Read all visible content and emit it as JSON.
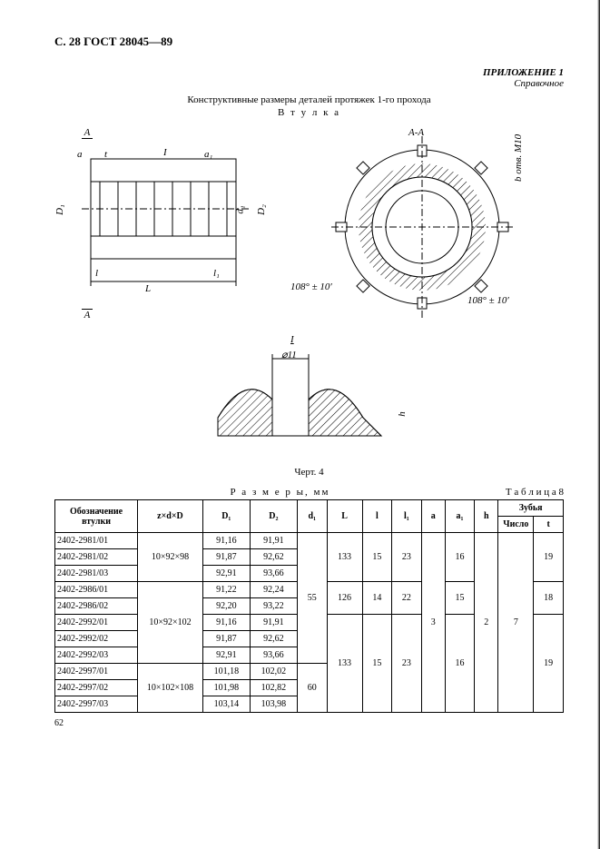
{
  "header": "С. 28 ГОСТ 28045—89",
  "appendix": {
    "line1": "ПРИЛОЖЕНИЕ 1",
    "line2": "Справочное"
  },
  "title": "Конструктивные размеры деталей протяжек 1-го прохода",
  "subtitle": "В т у л к а",
  "figure": {
    "section_label_top": "A",
    "section_label_right": "A-A",
    "angle_note": "108° ± 10′",
    "thread_note": "b отв. M10",
    "detail_label": "I",
    "detail_dim": "⌀11",
    "dims": {
      "D1": "D₁",
      "D2": "D₂",
      "d1": "d₁",
      "L": "L",
      "l": "l",
      "l1": "l₁",
      "a": "a",
      "a1": "a₁",
      "t": "t",
      "h": "h"
    },
    "caption": "Черт. 4"
  },
  "table": {
    "number": "Т а б л и ц а   8",
    "size_label": "Р а з м е р ы,   мм",
    "headers": {
      "c1": "Обозначение втулки",
      "c2": "z×d×D",
      "c3": "D₁",
      "c4": "D₂",
      "c5": "d₁",
      "c6": "L",
      "c7": "l",
      "c8": "l₁",
      "c9": "a",
      "c10": "a₁",
      "c11": "h",
      "teeth": "Зубья",
      "teeth_n": "Число",
      "teeth_t": "t"
    },
    "rows": [
      {
        "id": "2402-2981/01",
        "zdD": "10×92×98",
        "D1": "91,16",
        "D2": "91,91",
        "d1": "55",
        "L": "133",
        "l": "15",
        "l1": "23",
        "a": "3",
        "a1": "16",
        "h": "2",
        "zn": "7",
        "zt": "19"
      },
      {
        "id": "2402-2981/02",
        "zdD": "",
        "D1": "91,87",
        "D2": "92,62",
        "d1": "",
        "L": "",
        "l": "",
        "l1": "",
        "a": "",
        "a1": "",
        "h": "",
        "zn": "",
        "zt": ""
      },
      {
        "id": "2402-2981/03",
        "zdD": "",
        "D1": "92,91",
        "D2": "93,66",
        "d1": "",
        "L": "",
        "l": "",
        "l1": "",
        "a": "",
        "a1": "",
        "h": "",
        "zn": "",
        "zt": ""
      },
      {
        "id": "2402-2986/01",
        "zdD": "10×92×102",
        "D1": "91,22",
        "D2": "92,24",
        "d1": "",
        "L": "126",
        "l": "14",
        "l1": "22",
        "a": "",
        "a1": "15",
        "h": "",
        "zn": "",
        "zt": "18"
      },
      {
        "id": "2402-2986/02",
        "zdD": "",
        "D1": "92,20",
        "D2": "93,22",
        "d1": "",
        "L": "",
        "l": "",
        "l1": "",
        "a": "",
        "a1": "",
        "h": "",
        "zn": "",
        "zt": ""
      },
      {
        "id": "2402-2992/01",
        "zdD": "",
        "D1": "91,16",
        "D2": "91,91",
        "d1": "",
        "L": "133",
        "l": "15",
        "l1": "23",
        "a": "",
        "a1": "16",
        "h": "",
        "zn": "",
        "zt": "19"
      },
      {
        "id": "2402-2992/02",
        "zdD": "",
        "D1": "91,87",
        "D2": "92,62",
        "d1": "",
        "L": "",
        "l": "",
        "l1": "",
        "a": "",
        "a1": "",
        "h": "",
        "zn": "",
        "zt": ""
      },
      {
        "id": "2402-2992/03",
        "zdD": "",
        "D1": "92,91",
        "D2": "93,66",
        "d1": "",
        "L": "",
        "l": "",
        "l1": "",
        "a": "",
        "a1": "",
        "h": "",
        "zn": "",
        "zt": ""
      },
      {
        "id": "2402-2997/01",
        "zdD": "10×102×108",
        "D1": "101,18",
        "D2": "102,02",
        "d1": "60",
        "L": "",
        "l": "",
        "l1": "",
        "a": "",
        "a1": "",
        "h": "",
        "zn": "",
        "zt": ""
      },
      {
        "id": "2402-2997/02",
        "zdD": "",
        "D1": "101,98",
        "D2": "102,82",
        "d1": "",
        "L": "",
        "l": "",
        "l1": "",
        "a": "",
        "a1": "",
        "h": "",
        "zn": "",
        "zt": ""
      },
      {
        "id": "2402-2997/03",
        "zdD": "",
        "D1": "103,14",
        "D2": "103,98",
        "d1": "",
        "L": "",
        "l": "",
        "l1": "",
        "a": "",
        "a1": "",
        "h": "",
        "zn": "",
        "zt": ""
      }
    ],
    "col_widths_pct": [
      14,
      11,
      8,
      8,
      5,
      6,
      5,
      5,
      4,
      5,
      4,
      6,
      5
    ],
    "merges": {
      "zdD": [
        [
          0,
          3
        ],
        [
          3,
          5
        ],
        [
          8,
          3
        ]
      ],
      "d1": [
        [
          0,
          8
        ],
        [
          8,
          3
        ]
      ],
      "L": [
        [
          0,
          3
        ],
        [
          3,
          2
        ],
        [
          5,
          6
        ]
      ],
      "l": [
        [
          0,
          3
        ],
        [
          3,
          2
        ],
        [
          5,
          6
        ]
      ],
      "l1": [
        [
          0,
          3
        ],
        [
          3,
          2
        ],
        [
          5,
          6
        ]
      ],
      "a": [
        [
          0,
          11
        ]
      ],
      "a1": [
        [
          0,
          3
        ],
        [
          3,
          2
        ],
        [
          5,
          6
        ]
      ],
      "h": [
        [
          0,
          11
        ]
      ],
      "zn": [
        [
          0,
          11
        ]
      ],
      "zt": [
        [
          0,
          3
        ],
        [
          3,
          2
        ],
        [
          5,
          6
        ]
      ]
    }
  },
  "footer_page": "62"
}
